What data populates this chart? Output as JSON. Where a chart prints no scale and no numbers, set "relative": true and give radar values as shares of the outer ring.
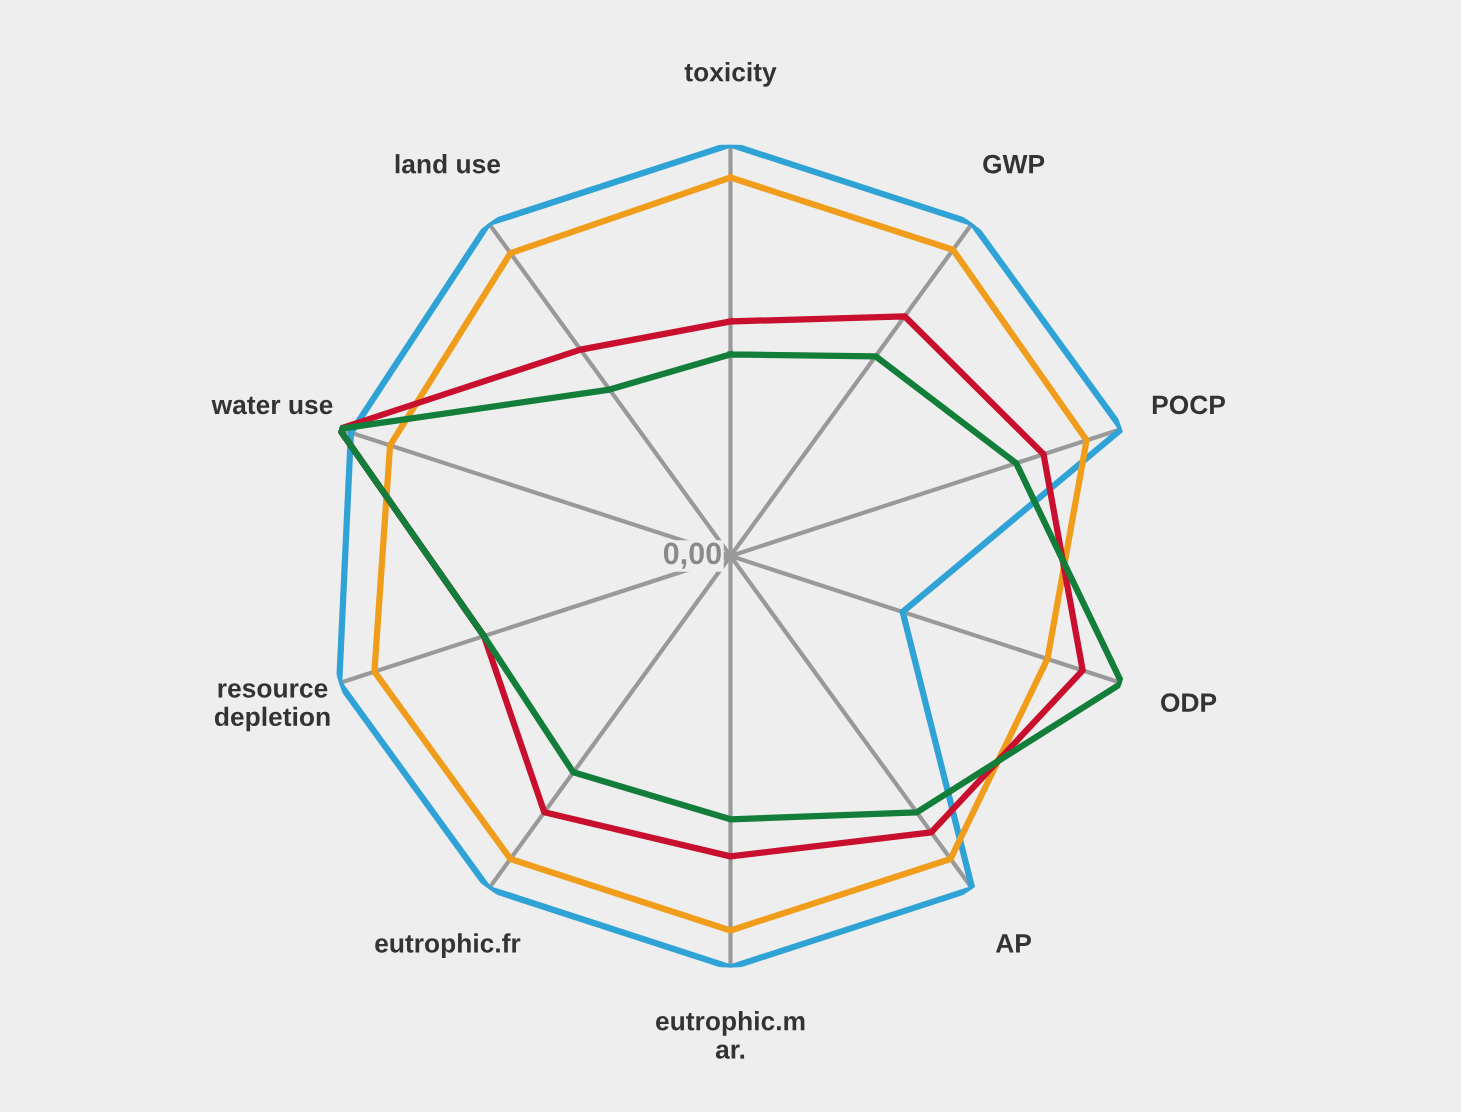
{
  "chart_data": {
    "type": "radar",
    "relative": true,
    "grid": "x",
    "marker": "none",
    "line_style": "solid",
    "categories": [
      "toxicity",
      "GWP",
      "POCP",
      "ODP",
      "AP",
      "eutrophic.m\nar.",
      "eutrophic.fr",
      "resource\ndepletion",
      "water use",
      "land use"
    ],
    "annotations": [
      "0,00"
    ],
    "series": [
      {
        "color": "#2fa3d6",
        "values": [
          1.0,
          1.0,
          1.0,
          0.44,
          1.0,
          1.0,
          1.0,
          1.0,
          0.97,
          1.0
        ]
      },
      {
        "color": "#f09d1c",
        "values": [
          0.92,
          0.92,
          0.91,
          0.81,
          0.91,
          0.91,
          0.91,
          0.91,
          0.87,
          0.91
        ]
      },
      {
        "color": "#c8102e",
        "values": [
          0.57,
          0.72,
          0.8,
          0.9,
          0.83,
          0.73,
          0.77,
          0.63,
          1.0,
          0.62
        ]
      },
      {
        "color": "#137d3a",
        "values": [
          0.49,
          0.6,
          0.73,
          1.0,
          0.77,
          0.64,
          0.65,
          0.63,
          1.0,
          0.5
        ]
      }
    ]
  }
}
